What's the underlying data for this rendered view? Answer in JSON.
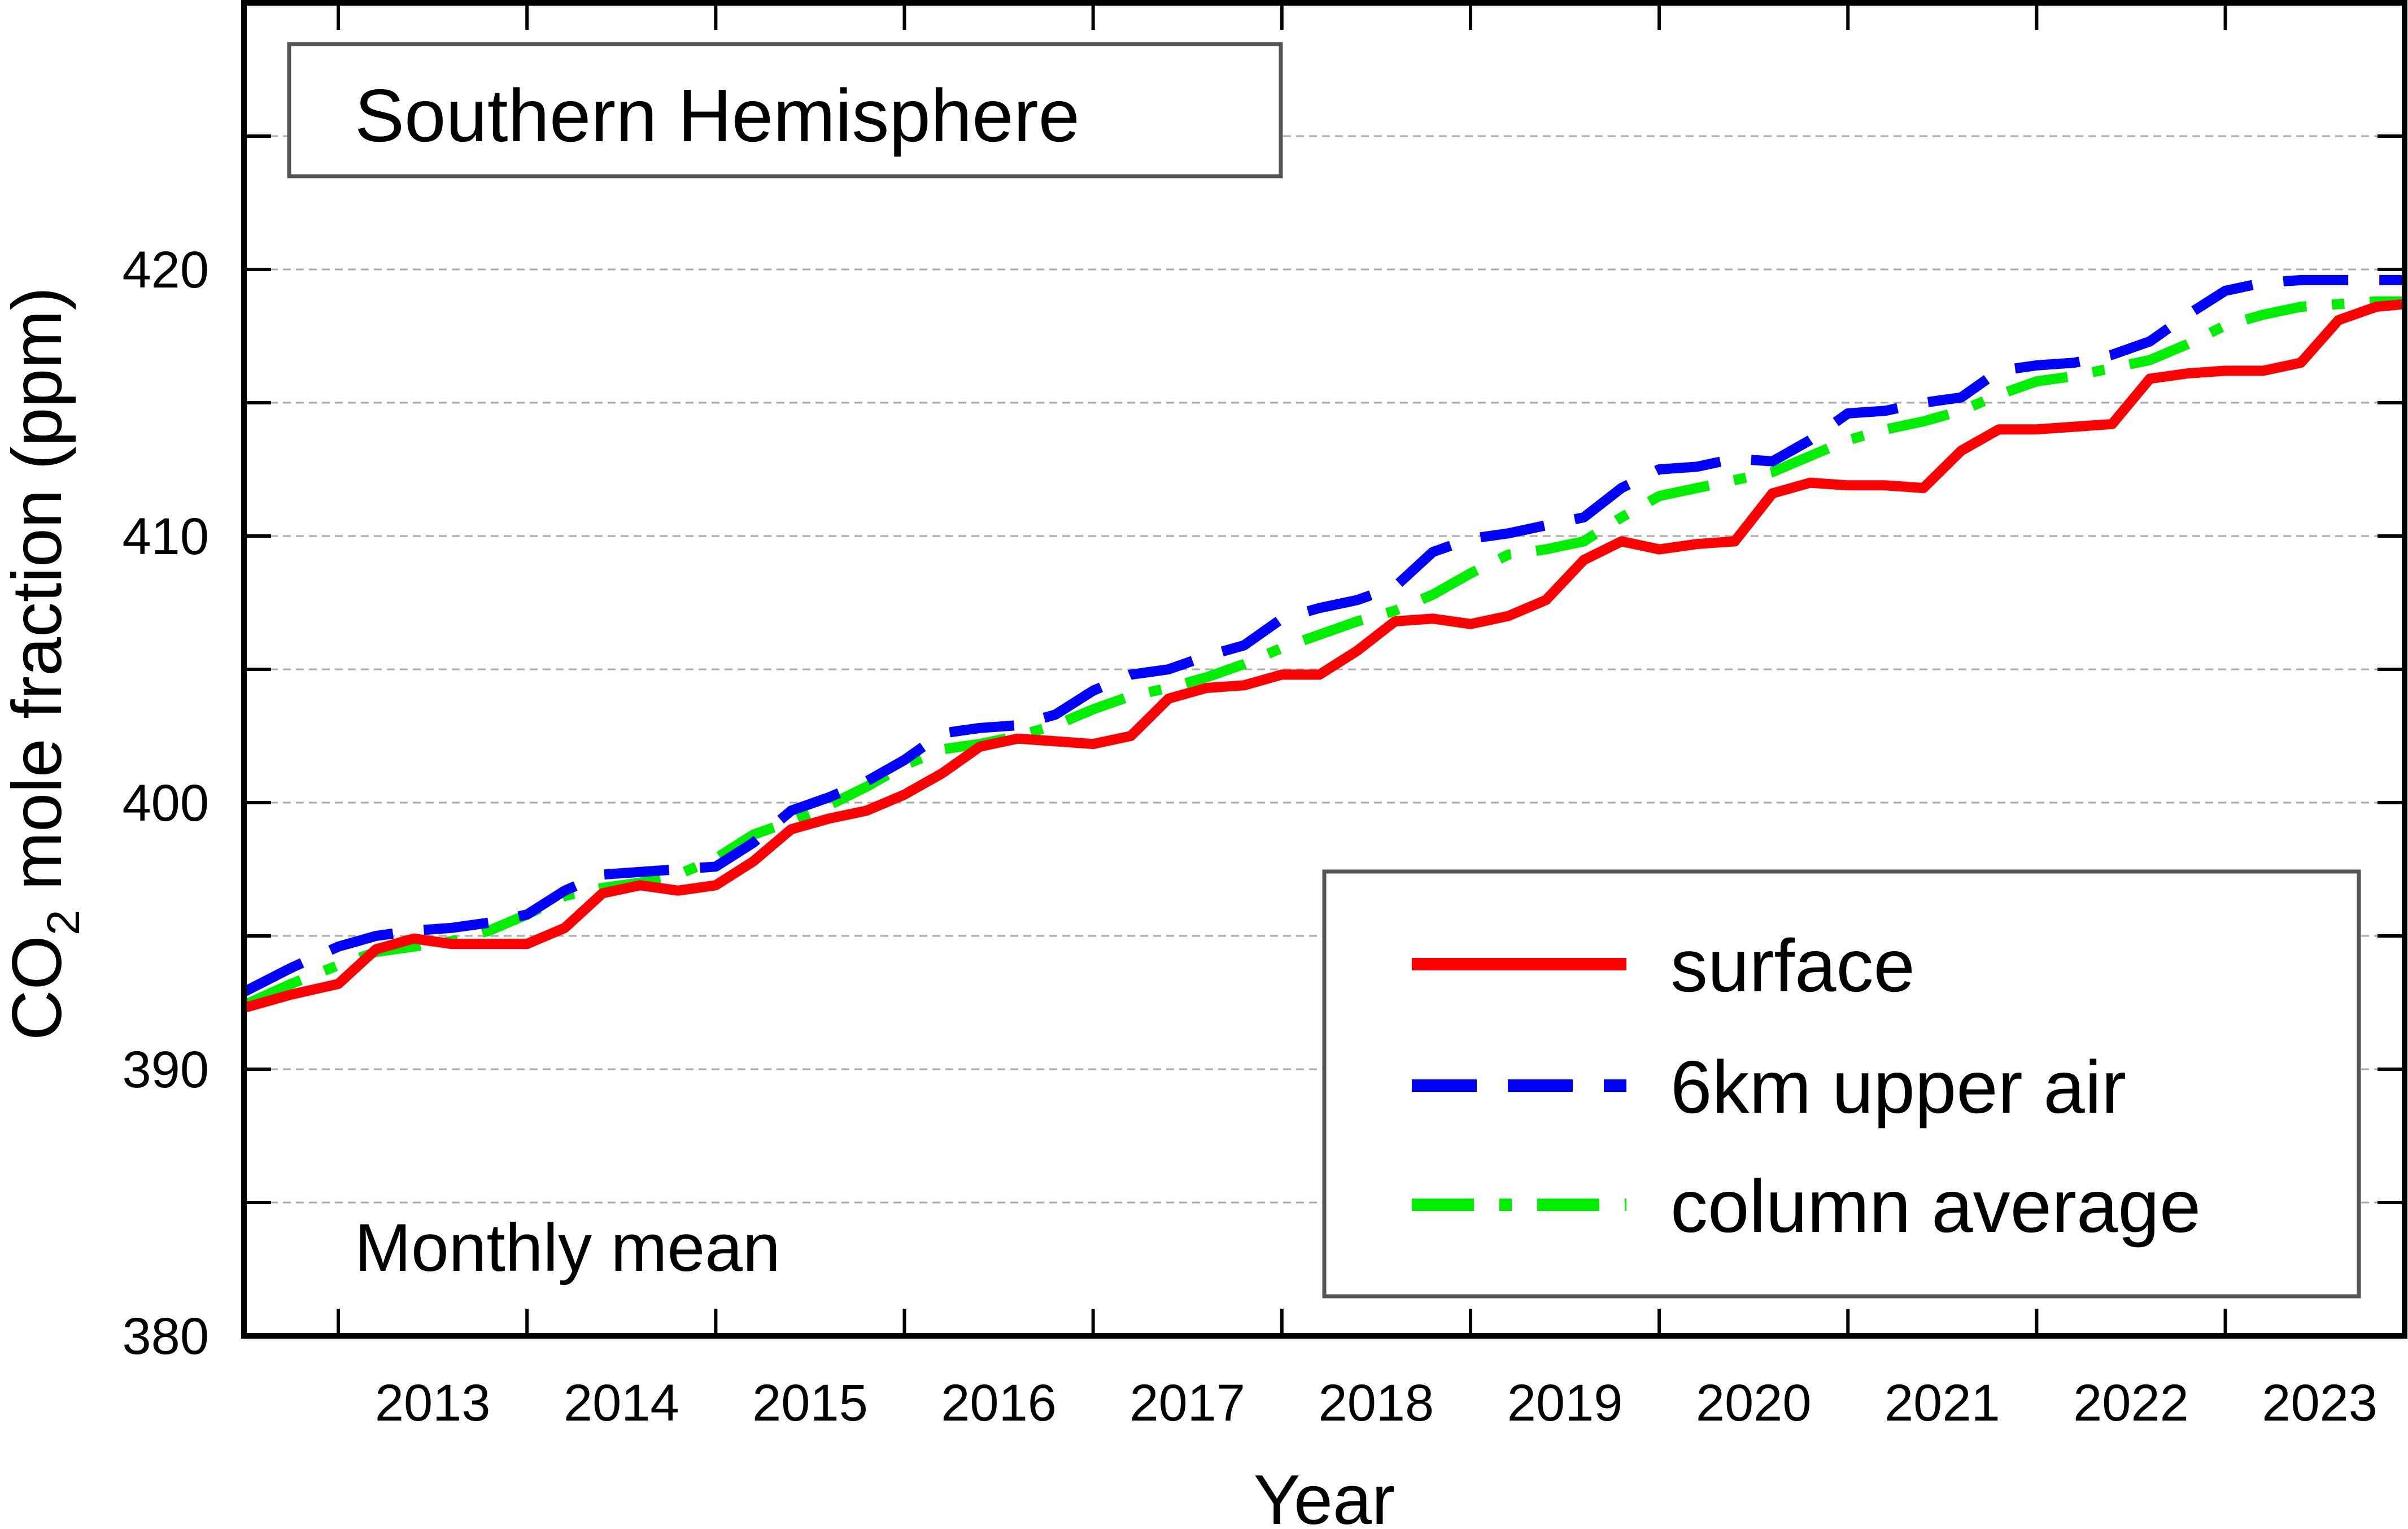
{
  "chart_data": {
    "type": "line",
    "title": "Southern Hemisphere",
    "annotation": "Monthly mean",
    "xlabel": "Year",
    "ylabel_prefix": "CO",
    "ylabel_sub": "2",
    "ylabel_suffix": " mole fraction (ppm)",
    "xlim": [
      2012.5,
      2023.95
    ],
    "ylim": [
      380,
      430
    ],
    "yticks": [
      380,
      390,
      400,
      410,
      420
    ],
    "yminor": [
      385,
      395,
      405,
      415,
      425
    ],
    "xticks": [
      "2013",
      "2014",
      "2015",
      "2016",
      "2017",
      "2018",
      "2019",
      "2020",
      "2021",
      "2022",
      "2023"
    ],
    "grid": true,
    "legend_position": "bottom-right",
    "series": [
      {
        "name": "surface",
        "color": "#ff0000",
        "style": "solid",
        "x": [
          2012.5,
          2012.75,
          2013.0,
          2013.2,
          2013.4,
          2013.6,
          2013.8,
          2014.0,
          2014.2,
          2014.4,
          2014.6,
          2014.8,
          2015.0,
          2015.2,
          2015.4,
          2015.6,
          2015.8,
          2016.0,
          2016.2,
          2016.4,
          2016.6,
          2016.8,
          2017.0,
          2017.2,
          2017.4,
          2017.6,
          2017.8,
          2018.0,
          2018.2,
          2018.4,
          2018.6,
          2018.8,
          2019.0,
          2019.2,
          2019.4,
          2019.6,
          2019.8,
          2020.0,
          2020.2,
          2020.4,
          2020.6,
          2020.8,
          2021.0,
          2021.2,
          2021.4,
          2021.6,
          2021.8,
          2022.0,
          2022.2,
          2022.4,
          2022.6,
          2022.8,
          2023.0,
          2023.2,
          2023.4,
          2023.6,
          2023.8,
          2023.95
        ],
        "y": [
          392.3,
          392.8,
          393.2,
          394.5,
          394.9,
          394.7,
          394.7,
          394.7,
          395.3,
          396.6,
          396.9,
          396.7,
          396.9,
          397.8,
          399.0,
          399.4,
          399.7,
          400.3,
          401.1,
          402.1,
          402.4,
          402.3,
          402.2,
          402.5,
          403.9,
          404.3,
          404.4,
          404.8,
          404.8,
          405.7,
          406.8,
          406.9,
          406.7,
          407.0,
          407.6,
          409.1,
          409.8,
          409.5,
          409.7,
          409.8,
          411.6,
          412.0,
          411.9,
          411.9,
          411.8,
          413.2,
          414.0,
          414.0,
          414.1,
          414.2,
          415.9,
          416.1,
          416.2,
          416.2,
          416.5,
          418.1,
          418.6,
          418.7
        ]
      },
      {
        "name": "6km upper air",
        "color": "#0000ff",
        "style": "dashed",
        "x": [
          2012.5,
          2012.75,
          2013.0,
          2013.2,
          2013.4,
          2013.6,
          2013.8,
          2014.0,
          2014.2,
          2014.4,
          2014.6,
          2014.8,
          2015.0,
          2015.2,
          2015.4,
          2015.6,
          2015.8,
          2016.0,
          2016.2,
          2016.4,
          2016.6,
          2016.8,
          2017.0,
          2017.2,
          2017.4,
          2017.6,
          2017.8,
          2018.0,
          2018.2,
          2018.4,
          2018.6,
          2018.8,
          2019.0,
          2019.2,
          2019.4,
          2019.6,
          2019.8,
          2020.0,
          2020.2,
          2020.4,
          2020.6,
          2020.8,
          2021.0,
          2021.2,
          2021.4,
          2021.6,
          2021.8,
          2022.0,
          2022.2,
          2022.4,
          2022.6,
          2022.8,
          2023.0,
          2023.2,
          2023.4,
          2023.6,
          2023.8,
          2023.95
        ],
        "y": [
          392.9,
          393.8,
          394.6,
          395.0,
          395.2,
          395.3,
          395.5,
          395.8,
          396.7,
          397.3,
          397.4,
          397.5,
          397.6,
          398.5,
          399.7,
          400.2,
          400.8,
          401.6,
          402.6,
          402.8,
          402.9,
          403.3,
          404.2,
          404.8,
          405.0,
          405.5,
          405.9,
          406.9,
          407.3,
          407.6,
          408.1,
          409.4,
          409.9,
          410.1,
          410.4,
          410.7,
          411.8,
          412.5,
          412.6,
          412.9,
          412.8,
          413.6,
          414.6,
          414.7,
          415.0,
          415.2,
          416.2,
          416.4,
          416.5,
          416.8,
          417.3,
          418.3,
          419.2,
          419.5,
          419.6,
          419.6,
          419.6,
          419.6
        ]
      },
      {
        "name": "column average",
        "color": "#00ee00",
        "style": "dashdot",
        "x": [
          2012.5,
          2012.75,
          2013.0,
          2013.2,
          2013.4,
          2013.6,
          2013.8,
          2014.0,
          2014.2,
          2014.4,
          2014.6,
          2014.8,
          2015.0,
          2015.2,
          2015.4,
          2015.6,
          2015.8,
          2016.0,
          2016.2,
          2016.4,
          2016.6,
          2016.8,
          2017.0,
          2017.2,
          2017.4,
          2017.6,
          2017.8,
          2018.0,
          2018.2,
          2018.4,
          2018.6,
          2018.8,
          2019.0,
          2019.2,
          2019.4,
          2019.6,
          2019.8,
          2020.0,
          2020.2,
          2020.4,
          2020.6,
          2020.8,
          2021.0,
          2021.2,
          2021.4,
          2021.6,
          2021.8,
          2022.0,
          2022.2,
          2022.4,
          2022.6,
          2022.8,
          2023.0,
          2023.2,
          2023.4,
          2023.6,
          2023.8,
          2023.95
        ],
        "y": [
          392.4,
          393.2,
          393.9,
          394.4,
          394.6,
          394.8,
          395.2,
          395.8,
          396.5,
          396.8,
          397.0,
          397.3,
          397.9,
          398.8,
          399.3,
          399.9,
          400.6,
          401.4,
          402.0,
          402.2,
          402.5,
          402.9,
          403.5,
          404.0,
          404.3,
          404.7,
          405.2,
          405.8,
          406.3,
          406.8,
          407.2,
          407.8,
          408.6,
          409.3,
          409.5,
          409.8,
          410.7,
          411.5,
          411.8,
          412.1,
          412.4,
          413.0,
          413.6,
          414.0,
          414.3,
          414.7,
          415.3,
          415.8,
          416.0,
          416.3,
          416.6,
          417.2,
          417.9,
          418.3,
          418.6,
          418.7,
          418.8,
          418.8
        ]
      }
    ]
  }
}
